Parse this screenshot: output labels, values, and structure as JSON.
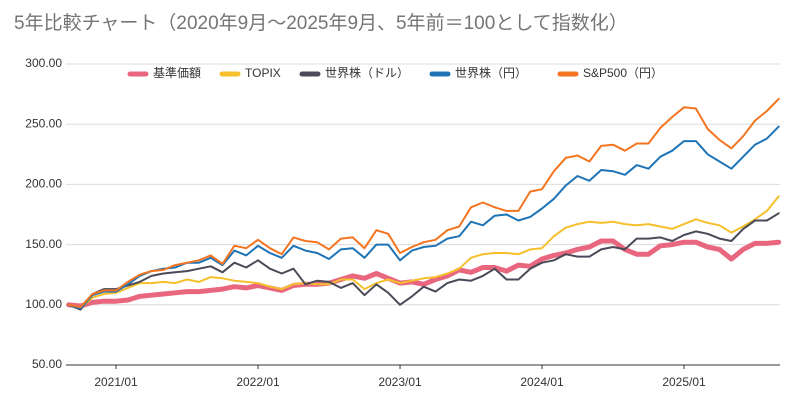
{
  "chart_data": {
    "type": "line",
    "title": "5年比較チャート（2020年9月～2025年9月、5年前＝100として指数化）",
    "x": [
      "2020/09",
      "2020/10",
      "2020/11",
      "2020/12",
      "2021/01",
      "2021/02",
      "2021/03",
      "2021/04",
      "2021/05",
      "2021/06",
      "2021/07",
      "2021/08",
      "2021/09",
      "2021/10",
      "2021/11",
      "2021/12",
      "2022/01",
      "2022/02",
      "2022/03",
      "2022/04",
      "2022/05",
      "2022/06",
      "2022/07",
      "2022/08",
      "2022/09",
      "2022/10",
      "2022/11",
      "2022/12",
      "2023/01",
      "2023/02",
      "2023/03",
      "2023/04",
      "2023/05",
      "2023/06",
      "2023/07",
      "2023/08",
      "2023/09",
      "2023/10",
      "2023/11",
      "2023/12",
      "2024/01",
      "2024/02",
      "2024/03",
      "2024/04",
      "2024/05",
      "2024/06",
      "2024/07",
      "2024/08",
      "2024/09",
      "2024/10",
      "2024/11",
      "2024/12",
      "2025/01",
      "2025/02",
      "2025/03",
      "2025/04",
      "2025/05",
      "2025/06",
      "2025/07",
      "2025/08",
      "2025/09"
    ],
    "xticks": [
      "2021/01",
      "2022/01",
      "2023/01",
      "2024/01",
      "2025/01"
    ],
    "ylim": [
      50,
      300
    ],
    "yticks": [
      {
        "value": 50,
        "label": "50.00"
      },
      {
        "value": 100,
        "label": "100.00"
      },
      {
        "value": 150,
        "label": "150.00"
      },
      {
        "value": 200,
        "label": "200.00"
      },
      {
        "value": 250,
        "label": "250.00"
      },
      {
        "value": 300,
        "label": "300.00"
      }
    ],
    "grid": true,
    "legend": "top",
    "series": [
      {
        "name": "基準価額",
        "color": "#e8677f",
        "width": 5,
        "values": [
          100,
          99,
          102,
          103,
          103,
          104,
          107,
          108,
          109,
          110,
          111,
          111,
          112,
          113,
          115,
          114,
          116,
          114,
          112,
          116,
          117,
          117,
          118,
          121,
          124,
          122,
          126,
          122,
          118,
          119,
          117,
          121,
          124,
          129,
          127,
          131,
          131,
          128,
          133,
          132,
          138,
          141,
          143,
          146,
          148,
          153,
          153,
          146,
          142,
          142,
          149,
          150,
          152,
          152,
          148,
          146,
          138,
          146,
          151,
          151,
          152
        ]
      },
      {
        "name": "TOPIX",
        "color": "#f5c02c",
        "width": 2,
        "values": [
          100,
          97,
          106,
          109,
          110,
          114,
          118,
          118,
          119,
          118,
          121,
          119,
          123,
          122,
          120,
          119,
          118,
          115,
          113,
          117,
          118,
          117,
          117,
          121,
          121,
          113,
          118,
          121,
          118,
          120,
          122,
          123,
          126,
          130,
          139,
          142,
          143,
          143,
          142,
          146,
          147,
          157,
          164,
          167,
          169,
          168,
          169,
          167,
          166,
          167,
          165,
          163,
          167,
          171,
          168,
          166,
          160,
          165,
          171,
          178,
          190
        ]
      },
      {
        "name": "世界株（ドル）",
        "color": "#4a4a58",
        "width": 2,
        "values": [
          100,
          96,
          109,
          113,
          113,
          116,
          119,
          124,
          126,
          127,
          128,
          130,
          132,
          127,
          135,
          131,
          137,
          130,
          126,
          130,
          117,
          120,
          119,
          114,
          118,
          108,
          117,
          110,
          100,
          107,
          115,
          111,
          118,
          121,
          120,
          124,
          130,
          121,
          121,
          130,
          135,
          137,
          142,
          140,
          140,
          146,
          148,
          146,
          155,
          155,
          156,
          153,
          158,
          161,
          159,
          155,
          153,
          163,
          170,
          170,
          176
        ]
      },
      {
        "name": "世界株（円）",
        "color": "#1f74b6",
        "width": 2,
        "values": [
          100,
          97,
          108,
          111,
          111,
          117,
          124,
          128,
          130,
          131,
          135,
          135,
          139,
          133,
          145,
          141,
          149,
          143,
          139,
          149,
          145,
          143,
          138,
          146,
          147,
          139,
          150,
          150,
          137,
          145,
          148,
          149,
          155,
          157,
          169,
          166,
          174,
          175,
          170,
          173,
          180,
          188,
          199,
          207,
          203,
          212,
          211,
          208,
          216,
          213,
          223,
          228,
          236,
          236,
          225,
          219,
          213,
          223,
          233,
          238,
          248
        ]
      },
      {
        "name": "S&P500（円）",
        "color": "#f37521",
        "width": 2,
        "values": [
          100,
          98,
          109,
          112,
          112,
          119,
          125,
          128,
          129,
          133,
          135,
          137,
          141,
          134,
          149,
          147,
          154,
          147,
          142,
          156,
          153,
          152,
          146,
          155,
          156,
          147,
          162,
          159,
          143,
          148,
          152,
          154,
          162,
          165,
          181,
          185,
          181,
          178,
          178,
          194,
          196,
          211,
          222,
          224,
          219,
          232,
          233,
          228,
          234,
          234,
          247,
          256,
          264,
          263,
          246,
          237,
          230,
          240,
          253,
          261,
          271
        ]
      }
    ]
  }
}
